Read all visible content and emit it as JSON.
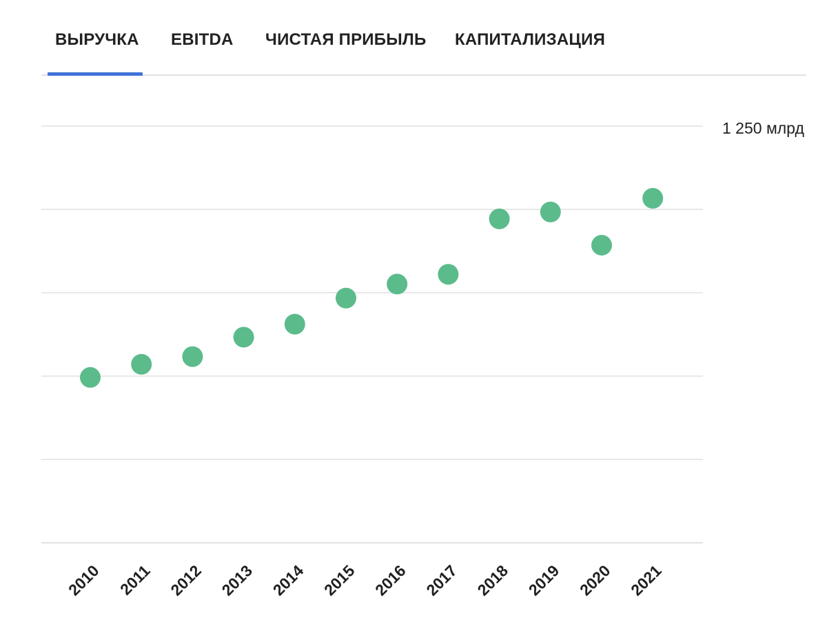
{
  "tabs": [
    {
      "label": "ВЫРУЧКА",
      "active": true
    },
    {
      "label": "EBITDA",
      "active": false
    },
    {
      "label": "ЧИСТАЯ ПРИБЫЛЬ",
      "active": false
    },
    {
      "label": "КАПИТАЛИЗАЦИЯ",
      "active": false
    }
  ],
  "colors": {
    "accent": "#3f73d8",
    "point": "#5cbb8b",
    "grid": "#e1e1e1"
  },
  "chart_data": {
    "type": "scatter",
    "title": "",
    "xlabel": "",
    "ylabel": "",
    "top_label": "1 250 млрд",
    "categories": [
      "2010",
      "2011",
      "2012",
      "2013",
      "2014",
      "2015",
      "2016",
      "2017",
      "2018",
      "2019",
      "2020",
      "2021"
    ],
    "values": [
      238,
      356,
      425,
      600,
      717,
      952,
      1078,
      1166,
      1665,
      1727,
      1428,
      1850
    ],
    "ylim": [
      -1250,
      2500
    ],
    "grid": true,
    "gridline_count": 6
  }
}
